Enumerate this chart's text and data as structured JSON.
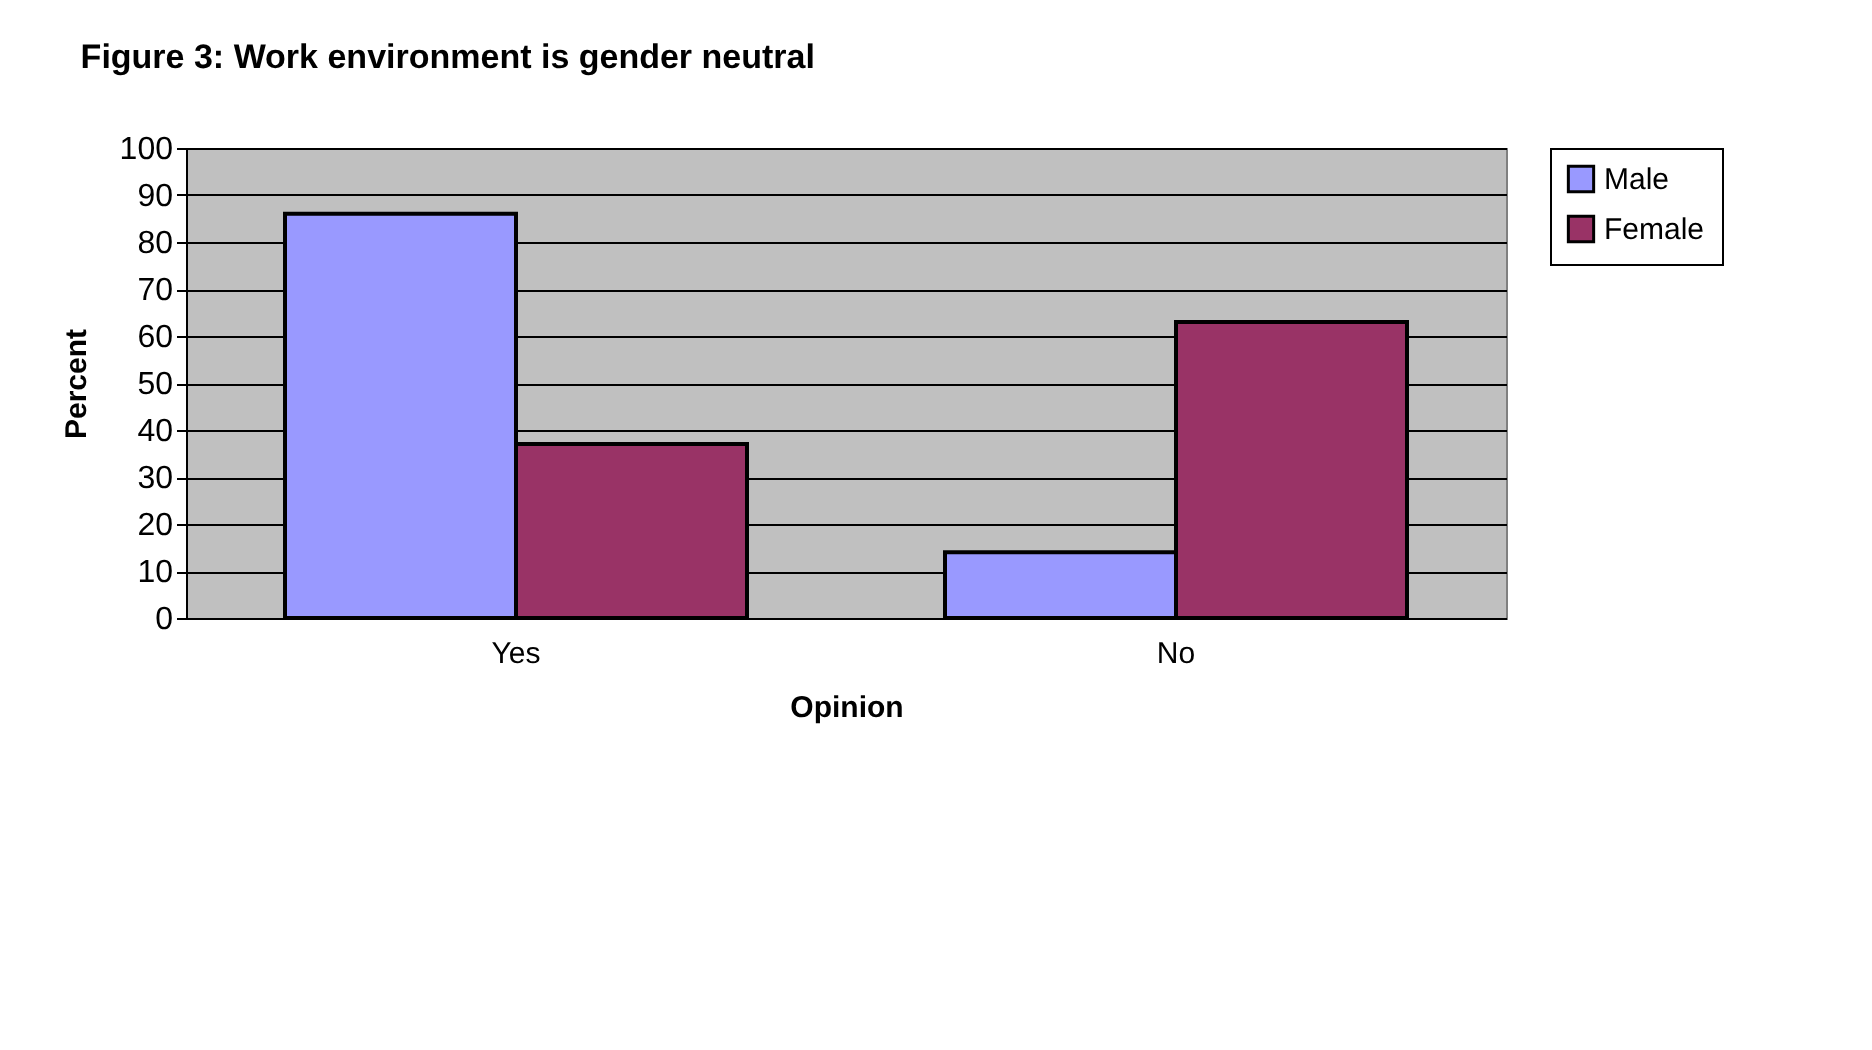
{
  "chart_data": {
    "type": "bar",
    "title": "Figure 3: Work environment is gender neutral",
    "xlabel": "Opinion",
    "ylabel": "Percent",
    "categories": [
      "Yes",
      "No"
    ],
    "series": [
      {
        "name": "Male",
        "color": "#9999ff",
        "values": [
          86,
          14
        ]
      },
      {
        "name": "Female",
        "color": "#993366",
        "values": [
          37,
          63
        ]
      }
    ],
    "ylim": [
      0,
      100
    ],
    "yticks": [
      0,
      10,
      20,
      30,
      40,
      50,
      60,
      70,
      80,
      90,
      100
    ],
    "grid": "y",
    "legend": "right"
  }
}
